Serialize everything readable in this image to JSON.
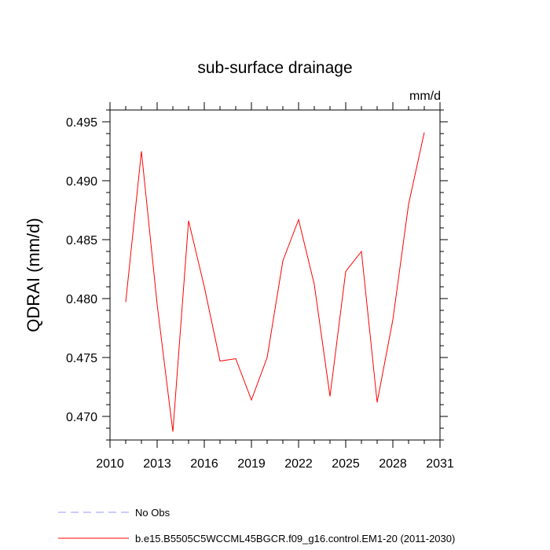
{
  "chart_data": {
    "type": "line",
    "title": "sub-surface drainage",
    "units_label": "mm/d",
    "ylabel": "QDRAI  (mm/d)",
    "xlabel": "",
    "xlim": [
      2010,
      2031
    ],
    "ylim": [
      0.468,
      0.496
    ],
    "x_ticks": [
      2010,
      2013,
      2016,
      2019,
      2022,
      2025,
      2028,
      2031
    ],
    "x_tick_labels": [
      "2010",
      "2013",
      "2016",
      "2019",
      "2022",
      "2025",
      "2028",
      "2031"
    ],
    "y_ticks": [
      0.47,
      0.475,
      0.48,
      0.485,
      0.49,
      0.495
    ],
    "y_tick_labels": [
      "0.470",
      "0.475",
      "0.480",
      "0.485",
      "0.490",
      "0.495"
    ],
    "grid": false,
    "series": [
      {
        "name": "b.e15.B5505C5WCCML45BGCR.f09_g16.control.EM1-20 (2011-2030)",
        "color": "#ff0000",
        "style": "solid",
        "x": [
          2011,
          2012,
          2013,
          2014,
          2015,
          2016,
          2017,
          2018,
          2019,
          2020,
          2021,
          2022,
          2023,
          2024,
          2025,
          2026,
          2027,
          2028,
          2029,
          2030
        ],
        "values": [
          0.4797,
          0.4925,
          0.4795,
          0.4687,
          0.4866,
          0.481,
          0.4747,
          0.4749,
          0.4714,
          0.475,
          0.4832,
          0.4867,
          0.4812,
          0.4717,
          0.4823,
          0.484,
          0.4712,
          0.4782,
          0.488,
          0.4941
        ]
      }
    ],
    "legend": [
      {
        "label": "No Obs",
        "color": "#9999ff",
        "style": "dashed"
      },
      {
        "label": "b.e15.B5505C5WCCML45BGCR.f09_g16.control.EM1-20 (2011-2030)",
        "color": "#ff0000",
        "style": "solid"
      }
    ],
    "legend_position": "bottom-left"
  }
}
